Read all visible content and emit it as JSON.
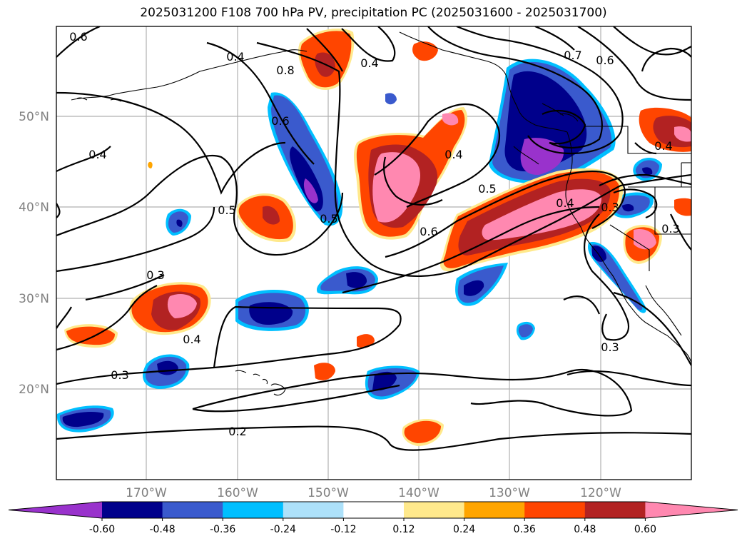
{
  "title": "2025031200 F108 700 hPa PV, precipitation PC (2025031600 - 2025031700)",
  "map": {
    "lat_labels": [
      "50°N",
      "40°N",
      "30°N",
      "20°N"
    ],
    "lon_labels": [
      "170°W",
      "160°W",
      "150°W",
      "140°W",
      "130°W",
      "120°W"
    ],
    "contour_labels": [
      "0.6",
      "0.8",
      "0.4",
      "0.7",
      "0.6",
      "0.6",
      "0.4",
      "0.4",
      "0.5",
      "0.5",
      "0.6",
      "0.5",
      "0.4",
      "0.3",
      "0.4",
      "0.3",
      "0.4",
      "0.3",
      "0.3",
      "0.2",
      "0.3",
      "0.4"
    ],
    "precip_colors": {
      "neg_extreme": "#9932cc",
      "neg_strong": "#00008b",
      "neg_moderate": "#3a5acd",
      "neg_weak": "#00bfff",
      "neg_faint": "#ade1fa",
      "pos_faint": "#ffe98c",
      "pos_weak": "#ffa500",
      "pos_moderate": "#ff4500",
      "pos_strong": "#b22222",
      "pos_extreme": "#ff88b0"
    }
  },
  "colorbar": {
    "ticks": [
      "-0.60",
      "-0.48",
      "-0.36",
      "-0.24",
      "-0.12",
      "0.12",
      "0.24",
      "0.36",
      "0.48",
      "0.60"
    ],
    "colors": [
      "#9932cc",
      "#00008b",
      "#3a5acd",
      "#00bfff",
      "#ade1fa",
      "#ffffff",
      "#ffe98c",
      "#ffa500",
      "#ff4500",
      "#b22222",
      "#ff88b0"
    ]
  }
}
